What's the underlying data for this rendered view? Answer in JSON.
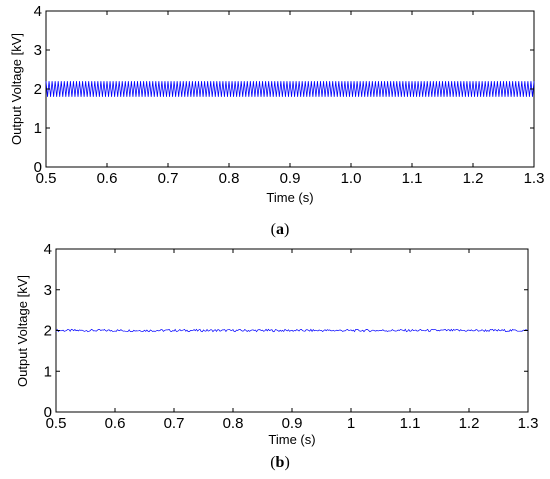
{
  "chart_data": [
    {
      "type": "line",
      "panel_label": "a",
      "xlabel": "Time (s)",
      "ylabel": "Output Voltage [kV]",
      "xlim": [
        0.5,
        1.3
      ],
      "ylim": [
        0,
        4
      ],
      "xticks": [
        "0.5",
        "0.6",
        "0.7",
        "0.8",
        "0.9",
        "1.0",
        "1.1",
        "1.2",
        "1.3"
      ],
      "xtick_values": [
        0.5,
        0.6,
        0.7,
        0.8,
        0.9,
        1.0,
        1.1,
        1.2,
        1.3
      ],
      "yticks": [
        "0",
        "1",
        "2",
        "3",
        "4"
      ],
      "ytick_values": [
        0,
        1,
        2,
        3,
        4
      ],
      "grid": false,
      "series": [
        {
          "color": "#0000ff",
          "style": "ripple",
          "x_start": 0.5,
          "x_end": 1.3,
          "mean": 2.0,
          "min": 1.8,
          "max": 2.2,
          "cycles": 160
        }
      ]
    },
    {
      "type": "line",
      "panel_label": "b",
      "xlabel": "Time (s)",
      "ylabel": "Output Voltage [kV]",
      "xlim": [
        0.5,
        1.3
      ],
      "ylim": [
        0,
        4
      ],
      "xticks": [
        "0.5",
        "0.6",
        "0.7",
        "0.8",
        "0.9",
        "1",
        "1.1",
        "1.2",
        "1.3"
      ],
      "xtick_values": [
        0.5,
        0.6,
        0.7,
        0.8,
        0.9,
        1.0,
        1.1,
        1.2,
        1.3
      ],
      "yticks": [
        "0",
        "1",
        "2",
        "3",
        "4"
      ],
      "ytick_values": [
        0,
        1,
        2,
        3,
        4
      ],
      "grid": false,
      "series": [
        {
          "color": "#0000ff",
          "style": "noise",
          "x_start": 0.5,
          "x_end": 1.3,
          "mean": 2.0,
          "min": 1.97,
          "max": 2.03,
          "cycles": 400
        }
      ]
    }
  ]
}
